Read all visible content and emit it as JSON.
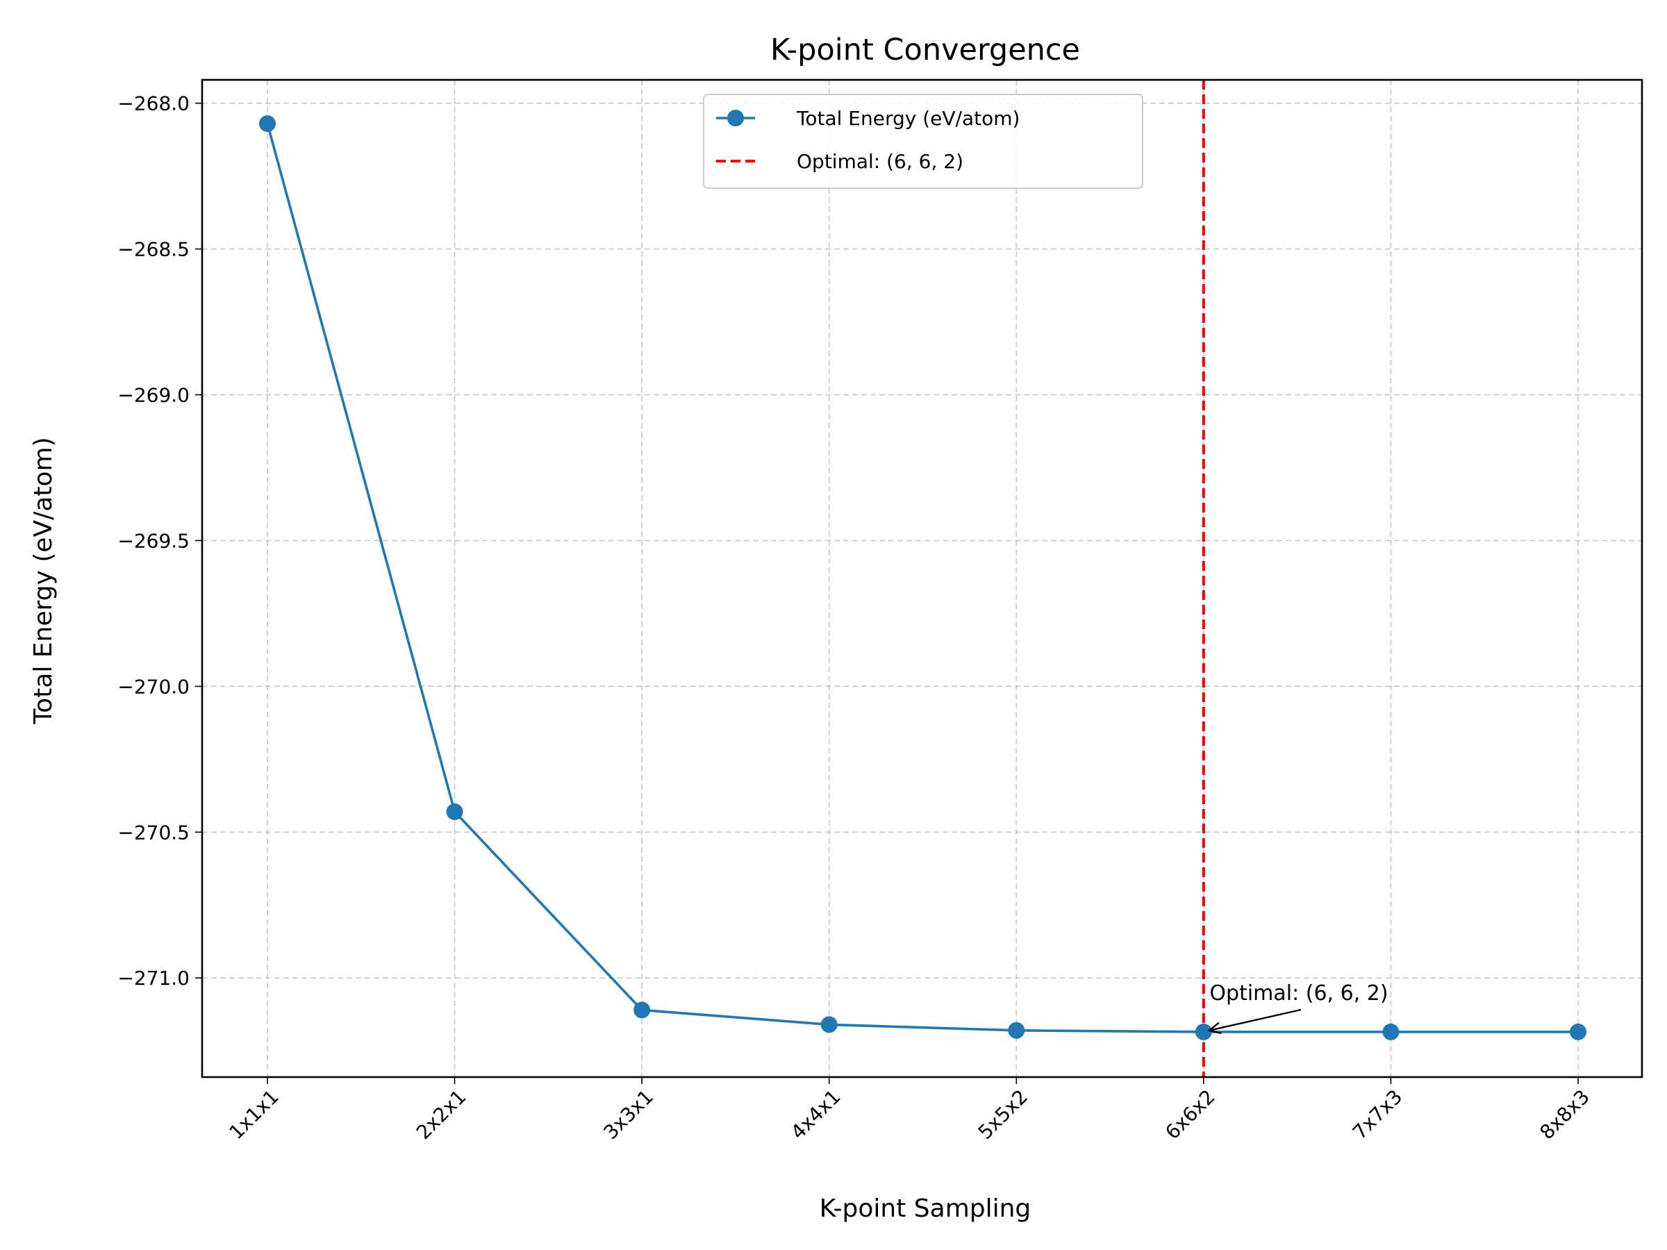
{
  "chart_data": {
    "type": "line",
    "title": "K-point Convergence",
    "xlabel": "K-point Sampling",
    "ylabel": "Total Energy (eV/atom)",
    "categories": [
      "1x1x1",
      "2x2x1",
      "3x3x1",
      "4x4x1",
      "5x5x2",
      "6x6x2",
      "7x7x3",
      "8x8x3"
    ],
    "series": [
      {
        "name": "Total Energy (eV/atom)",
        "color": "#1f77b4",
        "marker": "circle",
        "values": [
          -268.07,
          -270.43,
          -271.11,
          -271.16,
          -271.18,
          -271.185,
          -271.185,
          -271.185
        ]
      }
    ],
    "yticks": [
      -268.0,
      -268.5,
      -269.0,
      -269.5,
      -270.0,
      -270.5,
      -271.0
    ],
    "ytick_labels": [
      "−268.0",
      "−268.5",
      "−269.0",
      "−269.5",
      "−270.0",
      "−270.5",
      "−271.0"
    ],
    "ylim": [
      -271.34,
      -267.92
    ],
    "grid": true,
    "reference_line": {
      "label": "Optimal: (6, 6, 2)",
      "category": "6x6x2",
      "color": "#ff0000",
      "style": "dashed"
    },
    "annotation": {
      "text": "Optimal: (6, 6, 2)",
      "category": "6x6x2",
      "value": -271.185
    },
    "legend": {
      "position": "upper center",
      "entries": [
        "Total Energy (eV/atom)",
        "Optimal: (6, 6, 2)"
      ]
    }
  }
}
